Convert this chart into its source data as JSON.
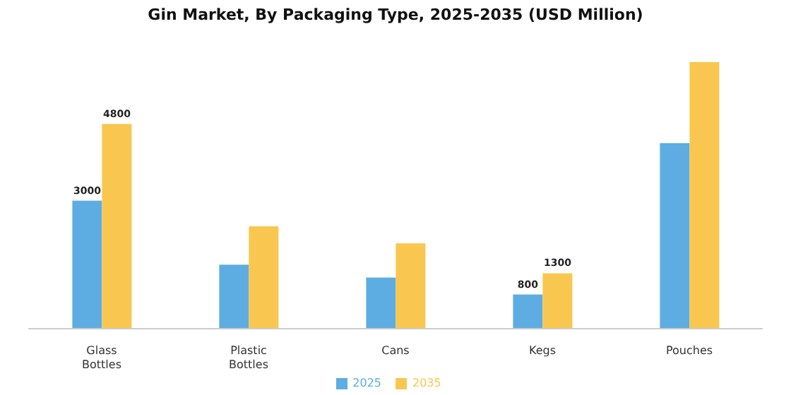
{
  "chart_data": {
    "type": "bar",
    "title": "Gin Market, By Packaging Type, 2025-2035 (USD Million)",
    "categories": [
      "Glass Bottles",
      "Plastic Bottles",
      "Cans",
      "Kegs",
      "Pouches"
    ],
    "series": [
      {
        "name": "2025",
        "color": "#5dade2",
        "values": [
          3000,
          1500,
          1200,
          800,
          4350
        ],
        "value_labels": [
          "3000",
          null,
          null,
          "800",
          null
        ]
      },
      {
        "name": "2035",
        "color": "#f9c74f",
        "values": [
          4800,
          2400,
          2000,
          1300,
          6250
        ],
        "value_labels": [
          "4800",
          null,
          null,
          "1300",
          null
        ]
      }
    ],
    "legend": "bottom",
    "grid": false
  }
}
